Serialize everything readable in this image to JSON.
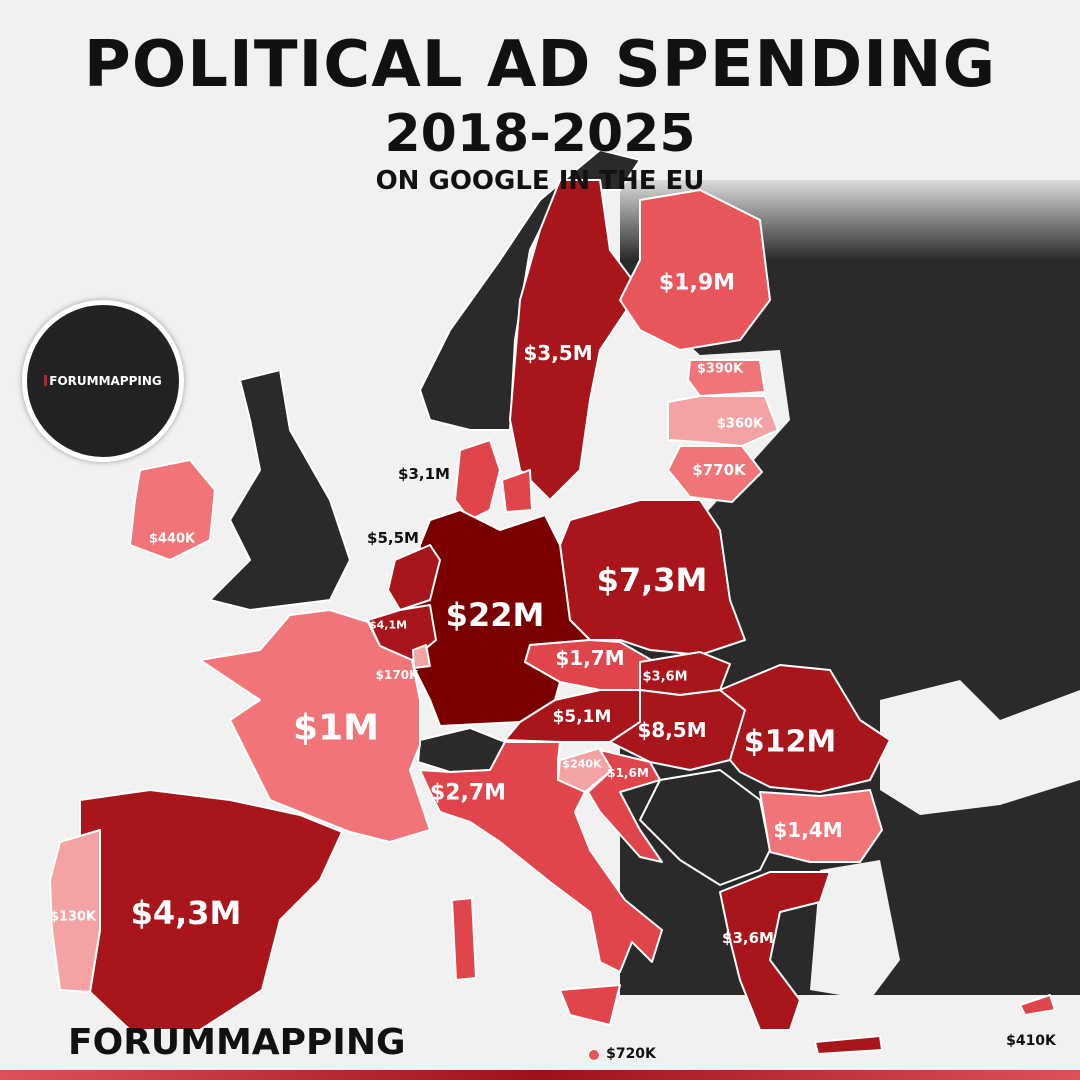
{
  "title": {
    "line1": "POLITICAL AD SPENDING",
    "line2": "2018-2025",
    "line3": "ON GOOGLE IN THE EU"
  },
  "brand": {
    "logo_text": "FORUMMAPPING",
    "footer": "FORUMMAPPING"
  },
  "colors": {
    "non_eu": "#2a2a2a",
    "sea": "#f1f1f1",
    "highest": "#7a0000",
    "high": "#a8151a",
    "medium": "#e0454b",
    "low": "#f07478",
    "lowest": "#f4a3a5"
  },
  "countries": [
    {
      "name": "Germany",
      "value": "$22M"
    },
    {
      "name": "Romania",
      "value": "$12M"
    },
    {
      "name": "Hungary",
      "value": "$8,5M"
    },
    {
      "name": "Poland",
      "value": "$7,3M"
    },
    {
      "name": "Netherlands",
      "value": "$5,5M"
    },
    {
      "name": "Austria",
      "value": "$5,1M"
    },
    {
      "name": "Spain",
      "value": "$4,3M"
    },
    {
      "name": "Belgium",
      "value": "$4,1M"
    },
    {
      "name": "Slovakia",
      "value": "$3,6M"
    },
    {
      "name": "Greece",
      "value": "$3,6M"
    },
    {
      "name": "Sweden",
      "value": "$3,5M"
    },
    {
      "name": "Denmark",
      "value": "$3,1M"
    },
    {
      "name": "Italy",
      "value": "$2,7M"
    },
    {
      "name": "Finland",
      "value": "$1,9M"
    },
    {
      "name": "Czechia",
      "value": "$1,7M"
    },
    {
      "name": "Croatia",
      "value": "$1,6M"
    },
    {
      "name": "Bulgaria",
      "value": "$1,4M"
    },
    {
      "name": "France",
      "value": "$1M"
    },
    {
      "name": "Lithuania",
      "value": "$770K"
    },
    {
      "name": "Malta",
      "value": "$720K"
    },
    {
      "name": "Ireland",
      "value": "$440K"
    },
    {
      "name": "Cyprus",
      "value": "$410K"
    },
    {
      "name": "Estonia",
      "value": "$390K"
    },
    {
      "name": "Latvia",
      "value": "$360K"
    },
    {
      "name": "Slovenia",
      "value": "$240K"
    },
    {
      "name": "Luxembourg",
      "value": "$170K"
    },
    {
      "name": "Portugal",
      "value": "$130K"
    }
  ]
}
